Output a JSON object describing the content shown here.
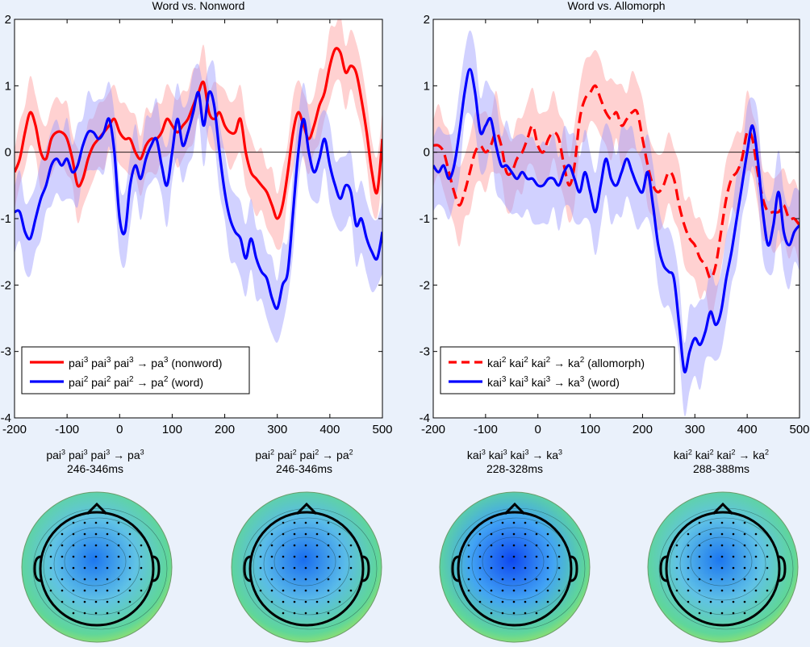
{
  "chart_data": [
    {
      "type": "line",
      "title": "Word vs. Nonword",
      "xlabel": "",
      "ylabel": "",
      "xlim": [
        -200,
        500
      ],
      "ylim": [
        -4,
        2
      ],
      "xticks": [
        -200,
        -100,
        0,
        100,
        200,
        300,
        400,
        500
      ],
      "yticks": [
        -4,
        -3,
        -2,
        -1,
        0,
        1,
        2
      ],
      "legend_position": "bottom-left",
      "series": [
        {
          "name": "pai3 pai3 pai3 → pa3 (nonword)",
          "legend_parts": [
            "pai",
            "3",
            " pai",
            "3",
            " pai",
            "3",
            " → pa",
            "3",
            " (nonword)"
          ],
          "color": "#ff0000",
          "dash": "solid",
          "x": [
            -200,
            -190,
            -180,
            -170,
            -160,
            -150,
            -140,
            -130,
            -120,
            -110,
            -100,
            -90,
            -80,
            -70,
            -60,
            -50,
            -40,
            -30,
            -20,
            -10,
            0,
            10,
            20,
            30,
            40,
            50,
            60,
            70,
            80,
            90,
            100,
            110,
            120,
            130,
            140,
            150,
            160,
            170,
            180,
            190,
            200,
            210,
            220,
            230,
            240,
            250,
            260,
            270,
            280,
            290,
            300,
            310,
            320,
            330,
            340,
            350,
            360,
            370,
            380,
            390,
            400,
            410,
            420,
            430,
            440,
            450,
            460,
            470,
            480,
            490,
            500
          ],
          "y": [
            -0.3,
            -0.1,
            0.3,
            0.6,
            0.4,
            0.0,
            -0.1,
            0.2,
            0.3,
            0.3,
            0.2,
            -0.1,
            -0.5,
            -0.4,
            -0.1,
            0.1,
            0.2,
            0.3,
            0.4,
            0.5,
            0.3,
            0.2,
            0.2,
            0.0,
            -0.1,
            0.1,
            0.2,
            0.2,
            0.3,
            0.5,
            0.4,
            0.3,
            0.4,
            0.5,
            0.7,
            0.9,
            1.05,
            0.6,
            0.5,
            0.6,
            0.4,
            0.3,
            0.3,
            0.5,
            0.0,
            -0.3,
            -0.4,
            -0.5,
            -0.6,
            -0.8,
            -1.0,
            -0.8,
            -0.3,
            0.3,
            0.6,
            0.4,
            0.2,
            0.4,
            0.7,
            0.9,
            1.3,
            1.55,
            1.5,
            1.2,
            1.3,
            1.2,
            0.8,
            0.3,
            -0.3,
            -0.6,
            0.2
          ],
          "band": 0.45
        },
        {
          "name": "pai2 pai2 pai2 → pa2 (word)",
          "legend_parts": [
            "pai",
            "2",
            " pai",
            "2",
            " pai",
            "2",
            " → pa",
            "2",
            " (word)"
          ],
          "color": "#0000ff",
          "dash": "solid",
          "x": [
            -200,
            -190,
            -180,
            -170,
            -160,
            -150,
            -140,
            -130,
            -120,
            -110,
            -100,
            -90,
            -80,
            -70,
            -60,
            -50,
            -40,
            -30,
            -20,
            -10,
            0,
            10,
            20,
            30,
            40,
            50,
            60,
            70,
            80,
            90,
            100,
            110,
            120,
            130,
            140,
            150,
            160,
            170,
            180,
            190,
            200,
            210,
            220,
            230,
            240,
            250,
            260,
            270,
            280,
            290,
            300,
            310,
            320,
            330,
            340,
            350,
            360,
            370,
            380,
            390,
            400,
            410,
            420,
            430,
            440,
            450,
            460,
            470,
            480,
            490,
            500
          ],
          "y": [
            -0.9,
            -0.9,
            -1.2,
            -1.3,
            -1.0,
            -0.7,
            -0.5,
            -0.2,
            -0.1,
            -0.2,
            -0.1,
            -0.3,
            -0.2,
            0.1,
            0.3,
            0.3,
            0.2,
            0.3,
            0.5,
            0.0,
            -1.0,
            -1.2,
            -0.5,
            -0.2,
            -0.4,
            -0.1,
            0.1,
            0.2,
            -0.2,
            -0.5,
            0.0,
            0.5,
            0.1,
            0.3,
            0.6,
            0.9,
            0.4,
            0.9,
            0.7,
            0.0,
            -0.6,
            -1.0,
            -1.2,
            -1.3,
            -1.6,
            -1.3,
            -1.6,
            -1.8,
            -1.9,
            -2.2,
            -2.35,
            -2.0,
            -1.8,
            -0.9,
            0.0,
            0.5,
            0.0,
            -0.3,
            -0.1,
            0.2,
            -0.2,
            -0.5,
            -0.7,
            -0.5,
            -0.6,
            -1.1,
            -1.0,
            -1.3,
            -1.5,
            -1.6,
            -1.2
          ],
          "band": 0.5
        }
      ]
    },
    {
      "type": "line",
      "title": "Word vs. Allomorph",
      "xlabel": "",
      "ylabel": "",
      "xlim": [
        -200,
        500
      ],
      "ylim": [
        -4,
        2
      ],
      "xticks": [
        -200,
        -100,
        0,
        100,
        200,
        300,
        400,
        500
      ],
      "yticks": [
        -4,
        -3,
        -2,
        -1,
        0,
        1,
        2
      ],
      "legend_position": "bottom-left",
      "series": [
        {
          "name": "kai2 kai2 kai2 → ka2 (allomorph)",
          "legend_parts": [
            "kai",
            "2",
            " kai",
            "2",
            " kai",
            "2",
            " → ka",
            "2",
            " (allomorph)"
          ],
          "color": "#ff0000",
          "dash": "dashed",
          "x": [
            -200,
            -190,
            -180,
            -170,
            -160,
            -150,
            -140,
            -130,
            -120,
            -110,
            -100,
            -90,
            -80,
            -70,
            -60,
            -50,
            -40,
            -30,
            -20,
            -10,
            0,
            10,
            20,
            30,
            40,
            50,
            60,
            70,
            80,
            90,
            100,
            110,
            120,
            130,
            140,
            150,
            160,
            170,
            180,
            190,
            200,
            210,
            220,
            230,
            240,
            250,
            260,
            270,
            280,
            290,
            300,
            310,
            320,
            330,
            340,
            350,
            360,
            370,
            380,
            390,
            400,
            410,
            420,
            430,
            440,
            450,
            460,
            470,
            480,
            490,
            500
          ],
          "y": [
            0.1,
            0.1,
            0.0,
            -0.3,
            -0.6,
            -0.8,
            -0.6,
            -0.3,
            0.0,
            0.1,
            0.0,
            0.1,
            0.3,
            0.1,
            -0.3,
            -0.3,
            -0.1,
            0.0,
            0.2,
            0.4,
            0.1,
            0.0,
            0.2,
            0.3,
            0.2,
            -0.2,
            -0.5,
            -0.2,
            0.5,
            0.8,
            0.9,
            1.0,
            0.8,
            0.6,
            0.5,
            0.6,
            0.4,
            0.5,
            0.6,
            0.6,
            0.2,
            -0.2,
            -0.5,
            -0.6,
            -0.5,
            -0.3,
            -0.4,
            -0.8,
            -1.1,
            -1.3,
            -1.4,
            -1.6,
            -1.7,
            -1.9,
            -1.7,
            -1.2,
            -0.7,
            -0.4,
            -0.3,
            -0.1,
            0.3,
            0.2,
            -0.3,
            -0.7,
            -0.9,
            -0.9,
            -0.9,
            -0.8,
            -1.0,
            -1.0,
            -1.1
          ],
          "band": 0.5
        },
        {
          "name": "kai3 kai3 kai3 → ka3 (word)",
          "legend_parts": [
            "kai",
            "3",
            " kai",
            "3",
            " kai",
            "3",
            " → ka",
            "3",
            " (word)"
          ],
          "color": "#0000ff",
          "dash": "solid",
          "x": [
            -200,
            -190,
            -180,
            -170,
            -160,
            -150,
            -140,
            -130,
            -120,
            -110,
            -100,
            -90,
            -80,
            -70,
            -60,
            -50,
            -40,
            -30,
            -20,
            -10,
            0,
            10,
            20,
            30,
            40,
            50,
            60,
            70,
            80,
            90,
            100,
            110,
            120,
            130,
            140,
            150,
            160,
            170,
            180,
            190,
            200,
            210,
            220,
            230,
            240,
            250,
            260,
            270,
            280,
            290,
            300,
            310,
            320,
            330,
            340,
            350,
            360,
            370,
            380,
            390,
            400,
            410,
            420,
            430,
            440,
            450,
            460,
            470,
            480,
            490,
            500
          ],
          "y": [
            -0.2,
            -0.3,
            -0.2,
            -0.4,
            -0.2,
            0.3,
            0.9,
            1.25,
            0.9,
            0.3,
            0.4,
            0.5,
            0.1,
            -0.2,
            -0.2,
            -0.3,
            -0.4,
            -0.3,
            -0.4,
            -0.4,
            -0.5,
            -0.5,
            -0.4,
            -0.4,
            -0.5,
            -0.3,
            -0.2,
            -0.4,
            -0.6,
            -0.3,
            -0.6,
            -0.9,
            -0.5,
            -0.1,
            -0.4,
            -0.5,
            -0.3,
            -0.1,
            -0.3,
            -0.5,
            -0.6,
            -0.3,
            -0.8,
            -1.4,
            -1.7,
            -1.8,
            -1.9,
            -2.6,
            -3.3,
            -3.0,
            -2.8,
            -2.9,
            -2.7,
            -2.4,
            -2.6,
            -2.4,
            -1.9,
            -1.5,
            -1.0,
            -0.5,
            0.0,
            0.4,
            -0.1,
            -0.9,
            -1.4,
            -1.1,
            -0.6,
            -1.2,
            -1.4,
            -1.2,
            -1.1
          ],
          "band": 0.55
        }
      ]
    }
  ],
  "topomaps": [
    {
      "label_parts": [
        "pai",
        "3",
        " pai",
        "3",
        " pai",
        "3",
        " → pa",
        "3"
      ],
      "window": "246-346ms",
      "depth": 0.45
    },
    {
      "label_parts": [
        "pai",
        "2",
        " pai",
        "2",
        " pai",
        "2",
        " → pa",
        "2"
      ],
      "window": "246-346ms",
      "depth": 0.55
    },
    {
      "label_parts": [
        "kai",
        "3",
        " kai",
        "3",
        " kai",
        "3",
        " → ka",
        "3"
      ],
      "window": "228-328ms",
      "depth": 0.9
    },
    {
      "label_parts": [
        "kai",
        "2",
        " kai",
        "2",
        " kai",
        "2",
        " → ka",
        "2"
      ],
      "window": "288-388ms",
      "depth": 0.45
    }
  ],
  "colors": {
    "background": "#eaf1fb",
    "red": "#ff0000",
    "red_band": "#ff9999",
    "blue": "#0000ff",
    "blue_band": "#9999ff"
  }
}
